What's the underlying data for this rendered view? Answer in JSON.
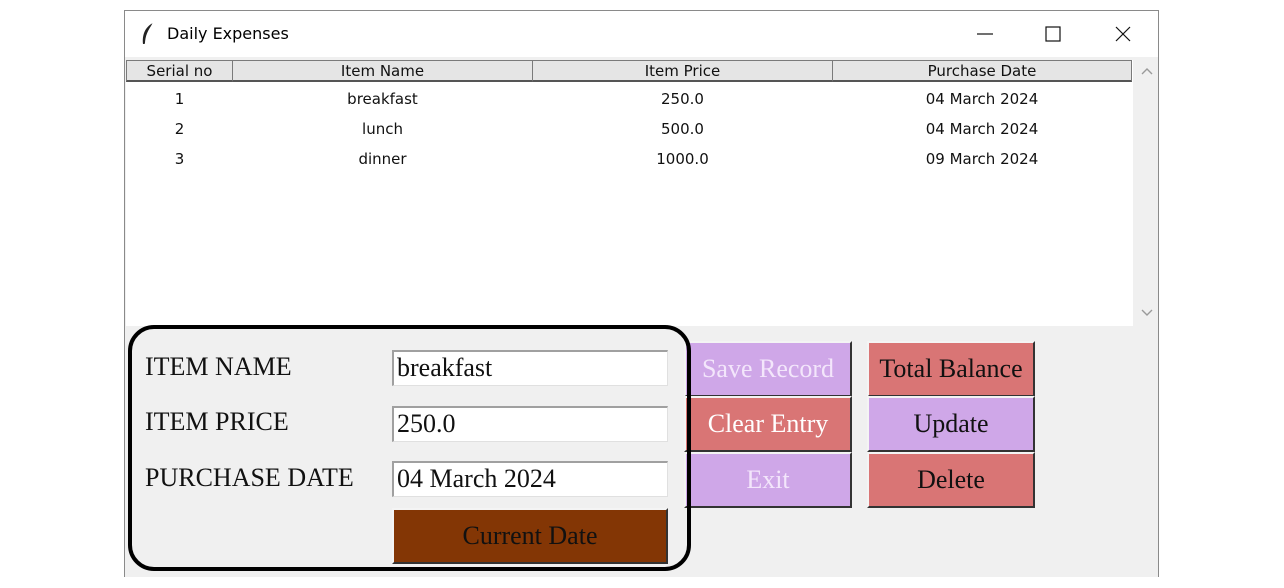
{
  "window": {
    "title": "Daily Expenses",
    "icon": "feather-icon"
  },
  "table": {
    "columns": [
      "Serial no",
      "Item Name",
      "Item Price",
      "Purchase Date"
    ],
    "rows": [
      [
        "1",
        "breakfast",
        "250.0",
        "04 March 2024"
      ],
      [
        "2",
        "lunch",
        "500.0",
        "04 March 2024"
      ],
      [
        "3",
        "dinner",
        "1000.0",
        "09 March 2024"
      ]
    ]
  },
  "form": {
    "item_name_label": "ITEM NAME",
    "item_price_label": "ITEM PRICE",
    "purchase_date_label": "PURCHASE DATE",
    "item_name_value": "breakfast",
    "item_price_value": "250.0",
    "purchase_date_value": "04 March 2024",
    "current_date_button": "Current Date"
  },
  "buttons": {
    "save_record": "Save Record",
    "clear_entry": "Clear Entry",
    "exit": "Exit",
    "total_balance": "Total Balance",
    "update": "Update",
    "delete": "Delete"
  },
  "colors": {
    "violet_button": "#cfa7e8",
    "salmon_button": "#d97575",
    "brown_button": "#833605",
    "disabled_text": "#f3e6fb"
  }
}
